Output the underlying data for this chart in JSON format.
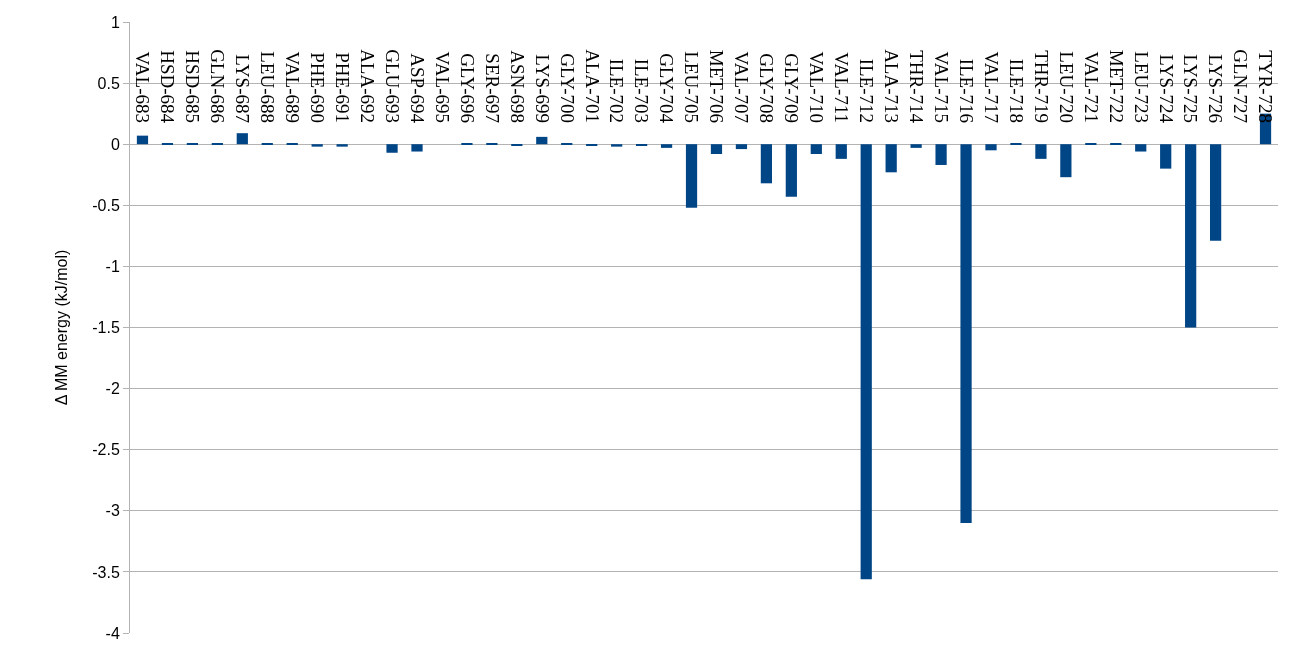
{
  "chart_data": {
    "type": "bar",
    "ylabel": "Δ MM energy (kJ/mol)",
    "categories": [
      "VAL-683",
      "HSD-684",
      "HSD-685",
      "GLN-686",
      "LYS-687",
      "LEU-688",
      "VAL-689",
      "PHE-690",
      "PHE-691",
      "ALA-692",
      "GLU-693",
      "ASP-694",
      "VAL-695",
      "GLY-696",
      "SER-697",
      "ASN-698",
      "LYS-699",
      "GLY-700",
      "ALA-701",
      "ILE-702",
      "ILE-703",
      "GLY-704",
      "LEU-705",
      "MET-706",
      "VAL-707",
      "GLY-708",
      "GLY-709",
      "VAL-710",
      "VAL-711",
      "ILE-712",
      "ALA-713",
      "THR-714",
      "VAL-715",
      "ILE-716",
      "VAL-717",
      "ILE-718",
      "THR-719",
      "LEU-720",
      "VAL-721",
      "MET-722",
      "LEU-723",
      "LYS-724",
      "LYS-725",
      "LYS-726",
      "GLN-727",
      "TYR-728"
    ],
    "values": [
      0.07,
      0.01,
      0.01,
      0.01,
      0.09,
      0.01,
      0.01,
      -0.02,
      -0.02,
      0,
      -0.07,
      -0.06,
      0,
      0.01,
      0.01,
      -0.01,
      0.06,
      0.01,
      -0.01,
      -0.02,
      -0.01,
      -0.03,
      -0.52,
      -0.08,
      -0.04,
      -0.32,
      -0.43,
      -0.08,
      -0.12,
      -3.56,
      -0.23,
      -0.03,
      -0.17,
      -3.1,
      -0.05,
      0.01,
      -0.12,
      -0.27,
      0.01,
      0.01,
      -0.06,
      -0.2,
      -1.5,
      -0.79,
      0,
      0.25
    ],
    "color": "#004586",
    "ylim": [
      -4,
      1
    ],
    "yticks": [
      -4,
      -3.5,
      -3,
      -2.5,
      -2,
      -1.5,
      -1,
      -0.5,
      0,
      0.5,
      1
    ],
    "grid": "y",
    "legend": false
  }
}
